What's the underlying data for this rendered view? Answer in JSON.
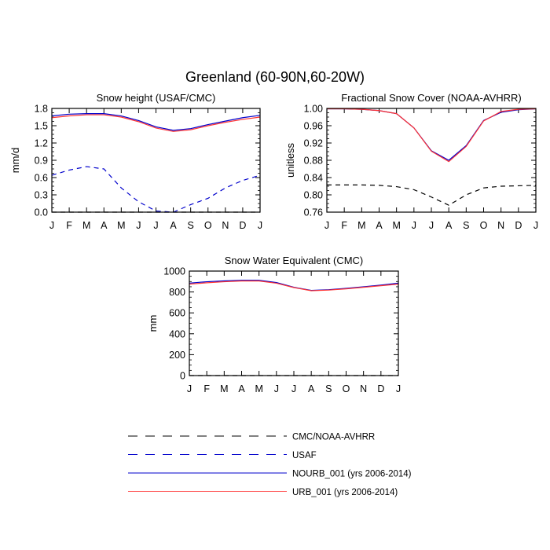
{
  "figure": {
    "title": "Greenland (60-90N,60-20W)"
  },
  "months": [
    "J",
    "F",
    "M",
    "A",
    "M",
    "J",
    "J",
    "A",
    "S",
    "O",
    "N",
    "D",
    "J"
  ],
  "colors": {
    "nourb": "#0000cc",
    "urb": "#ff3333",
    "usaf": "#0000cc",
    "obs": "#000000"
  },
  "chart_data": [
    {
      "type": "line",
      "title": "Snow height (USAF/CMC)",
      "ylabel": "mm/d",
      "ylim": [
        0,
        1.8
      ],
      "yticks": [
        "0.0",
        "0.3",
        "0.6",
        "0.9",
        "1.2",
        "1.5",
        "1.8"
      ],
      "yticks_values": [
        0,
        0.3,
        0.6,
        0.9,
        1.2,
        1.5,
        1.8
      ],
      "categories": [
        "J",
        "F",
        "M",
        "A",
        "M",
        "J",
        "J",
        "A",
        "S",
        "O",
        "N",
        "D",
        "J"
      ],
      "series": [
        {
          "name": "CMC/NOAA-AVHRR",
          "style": "obs",
          "values": [
            0,
            0,
            0,
            0,
            0,
            0,
            0,
            0,
            0,
            0,
            0,
            0,
            0
          ]
        },
        {
          "name": "USAF",
          "style": "usaf",
          "values": [
            0.64,
            0.73,
            0.79,
            0.75,
            0.42,
            0.18,
            0.02,
            0.0,
            0.13,
            0.24,
            0.42,
            0.55,
            0.64
          ]
        },
        {
          "name": "NOURB_001 (yrs 2006-2014)",
          "style": "nourb",
          "values": [
            1.67,
            1.7,
            1.71,
            1.71,
            1.67,
            1.59,
            1.48,
            1.42,
            1.45,
            1.52,
            1.58,
            1.64,
            1.68
          ]
        },
        {
          "name": "URB_001 (yrs 2006-2014)",
          "style": "urb",
          "values": [
            1.64,
            1.67,
            1.69,
            1.69,
            1.65,
            1.57,
            1.46,
            1.4,
            1.43,
            1.5,
            1.56,
            1.61,
            1.65
          ]
        }
      ]
    },
    {
      "type": "line",
      "title": "Fractional Snow Cover (NOAA-AVHRR)",
      "ylabel": "unitless",
      "ylim": [
        0.76,
        1.0
      ],
      "yticks": [
        "0.76",
        "0.80",
        "0.84",
        "0.88",
        "0.92",
        "0.96",
        "1.00"
      ],
      "yticks_values": [
        0.76,
        0.8,
        0.84,
        0.88,
        0.92,
        0.96,
        1.0
      ],
      "categories": [
        "J",
        "F",
        "M",
        "A",
        "M",
        "J",
        "J",
        "A",
        "S",
        "O",
        "N",
        "D",
        "J"
      ],
      "series": [
        {
          "name": "CMC/NOAA-AVHRR",
          "style": "obs",
          "values": [
            0.823,
            0.823,
            0.823,
            0.822,
            0.819,
            0.812,
            0.795,
            0.776,
            0.8,
            0.816,
            0.82,
            0.821,
            0.822
          ]
        },
        {
          "name": "NOURB_001 (yrs 2006-2014)",
          "style": "nourb",
          "values": [
            0.999,
            0.999,
            0.998,
            0.995,
            0.988,
            0.955,
            0.902,
            0.88,
            0.914,
            0.972,
            0.991,
            0.997,
            0.999
          ]
        },
        {
          "name": "URB_001 (yrs 2006-2014)",
          "style": "urb",
          "values": [
            0.999,
            0.999,
            0.998,
            0.995,
            0.988,
            0.955,
            0.901,
            0.877,
            0.912,
            0.971,
            0.993,
            0.998,
            0.999
          ]
        }
      ]
    },
    {
      "type": "line",
      "title": "Snow Water Equivalent (CMC)",
      "ylabel": "mm",
      "ylim": [
        0,
        1000
      ],
      "yticks": [
        "0",
        "200",
        "400",
        "600",
        "800",
        "1000"
      ],
      "yticks_values": [
        0,
        200,
        400,
        600,
        800,
        1000
      ],
      "categories": [
        "J",
        "F",
        "M",
        "A",
        "M",
        "J",
        "J",
        "A",
        "S",
        "O",
        "N",
        "D",
        "J"
      ],
      "series": [
        {
          "name": "CMC/NOAA-AVHRR",
          "style": "obs",
          "values": [
            0,
            0,
            0,
            0,
            0,
            0,
            0,
            0,
            0,
            0,
            0,
            0,
            0
          ]
        },
        {
          "name": "NOURB_001 (yrs 2006-2014)",
          "style": "nourb",
          "values": [
            885,
            898,
            906,
            912,
            912,
            890,
            845,
            815,
            822,
            835,
            850,
            866,
            885
          ]
        },
        {
          "name": "URB_001 (yrs 2006-2014)",
          "style": "urb",
          "values": [
            875,
            888,
            898,
            905,
            905,
            884,
            842,
            812,
            818,
            830,
            845,
            860,
            875
          ]
        }
      ]
    }
  ],
  "legend": [
    {
      "label": "CMC/NOAA-AVHRR",
      "style": "obs"
    },
    {
      "label": "USAF",
      "style": "usaf"
    },
    {
      "label": "NOURB_001 (yrs 2006-2014)",
      "style": "nourb"
    },
    {
      "label": "URB_001 (yrs 2006-2014)",
      "style": "urb"
    }
  ]
}
